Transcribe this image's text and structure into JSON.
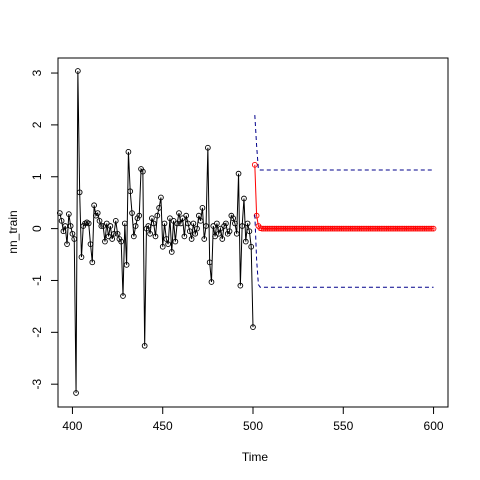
{
  "chart_data": {
    "type": "line",
    "xlabel": "Time",
    "ylabel": "nn_train",
    "xlim": [
      392,
      608
    ],
    "ylim": [
      -3.44,
      3.29
    ],
    "xticks": [
      400,
      450,
      500,
      550,
      600
    ],
    "yticks": [
      -3,
      -2,
      -1,
      0,
      1,
      2,
      3
    ],
    "series": [
      {
        "color": "#000000",
        "style": "line-points",
        "x": [
          393,
          394,
          395,
          396,
          397,
          398,
          399,
          400,
          401,
          402,
          403,
          404,
          405,
          406,
          407,
          408,
          409,
          410,
          411,
          412,
          413,
          414,
          415,
          416,
          417,
          418,
          419,
          420,
          421,
          422,
          423,
          424,
          425,
          426,
          427,
          428,
          429,
          430,
          431,
          432,
          433,
          434,
          435,
          436,
          437,
          438,
          439,
          440,
          441,
          442,
          443,
          444,
          445,
          446,
          447,
          448,
          449,
          450,
          451,
          452,
          453,
          454,
          455,
          456,
          457,
          458,
          459,
          460,
          461,
          462,
          463,
          464,
          465,
          466,
          467,
          468,
          469,
          470,
          471,
          472,
          473,
          474,
          475,
          476,
          477,
          478,
          479,
          480,
          481,
          482,
          483,
          484,
          485,
          486,
          487,
          488,
          489,
          490,
          491,
          492,
          493,
          494,
          495,
          496,
          497,
          498,
          499,
          500
        ],
        "values": [
          0.3,
          0.15,
          -0.05,
          0.05,
          -0.3,
          0.28,
          0.05,
          -0.1,
          -0.2,
          -3.17,
          3.04,
          0.7,
          -0.55,
          0.05,
          0.1,
          0.12,
          0.1,
          -0.3,
          -0.65,
          0.45,
          0.25,
          0.3,
          0.15,
          0.05,
          0.05,
          -0.25,
          0.1,
          -0.15,
          0.05,
          -0.2,
          -0.1,
          0.15,
          -0.1,
          -0.2,
          -0.25,
          -1.3,
          0.1,
          -0.7,
          1.48,
          0.72,
          0.3,
          -0.15,
          0.05,
          0.2,
          0.25,
          1.15,
          1.1,
          -2.26,
          0.0,
          0.05,
          -0.1,
          0.2,
          0.1,
          -0.15,
          0.25,
          0.4,
          0.6,
          -0.35,
          0.1,
          -0.2,
          -0.3,
          0.2,
          -0.45,
          0.15,
          -0.25,
          0.1,
          0.3,
          0.1,
          0.2,
          -0.15,
          0.25,
          0.1,
          -0.05,
          -0.2,
          0.1,
          -0.1,
          0.0,
          0.25,
          0.15,
          0.4,
          -0.2,
          0.05,
          1.56,
          -0.65,
          -1.03,
          0.05,
          -0.15,
          0.1,
          -0.1,
          0.0,
          -0.2,
          0.05,
          0.1,
          -0.1,
          -0.05,
          0.25,
          0.2,
          0.1,
          -0.1,
          1.06,
          -1.1,
          0.05,
          0.58,
          -0.25,
          0.1,
          -0.05,
          -0.35,
          -1.9
        ]
      },
      {
        "color": "#ff0000",
        "style": "line-points",
        "x": [
          501,
          502,
          503,
          504,
          505,
          506,
          507,
          508,
          509,
          510,
          511,
          512,
          513,
          514,
          515,
          516,
          517,
          518,
          519,
          520,
          521,
          522,
          523,
          524,
          525,
          526,
          527,
          528,
          529,
          530,
          531,
          532,
          533,
          534,
          535,
          536,
          537,
          538,
          539,
          540,
          541,
          542,
          543,
          544,
          545,
          546,
          547,
          548,
          549,
          550,
          551,
          552,
          553,
          554,
          555,
          556,
          557,
          558,
          559,
          560,
          561,
          562,
          563,
          564,
          565,
          566,
          567,
          568,
          569,
          570,
          571,
          572,
          573,
          574,
          575,
          576,
          577,
          578,
          579,
          580,
          581,
          582,
          583,
          584,
          585,
          586,
          587,
          588,
          589,
          590,
          591,
          592,
          593,
          594,
          595,
          596,
          597,
          598,
          599,
          600
        ],
        "values": [
          1.23,
          0.25,
          0.05,
          0.01,
          0,
          0,
          0,
          0,
          0,
          0,
          0,
          0,
          0,
          0,
          0,
          0,
          0,
          0,
          0,
          0,
          0,
          0,
          0,
          0,
          0,
          0,
          0,
          0,
          0,
          0,
          0,
          0,
          0,
          0,
          0,
          0,
          0,
          0,
          0,
          0,
          0,
          0,
          0,
          0,
          0,
          0,
          0,
          0,
          0,
          0,
          0,
          0,
          0,
          0,
          0,
          0,
          0,
          0,
          0,
          0,
          0,
          0,
          0,
          0,
          0,
          0,
          0,
          0,
          0,
          0,
          0,
          0,
          0,
          0,
          0,
          0,
          0,
          0,
          0,
          0,
          0,
          0,
          0,
          0,
          0,
          0,
          0,
          0,
          0,
          0,
          0,
          0,
          0,
          0,
          0,
          0,
          0,
          0,
          0,
          0
        ]
      },
      {
        "color": "#00008b",
        "style": "dashed",
        "x": [
          501,
          502,
          503,
          504,
          505,
          506,
          507,
          508,
          509,
          510,
          511,
          512,
          513,
          514,
          515,
          516,
          517,
          518,
          519,
          520,
          521,
          522,
          523,
          524,
          525,
          526,
          527,
          528,
          529,
          530,
          531,
          532,
          533,
          534,
          535,
          536,
          537,
          538,
          539,
          540,
          541,
          542,
          543,
          544,
          545,
          546,
          547,
          548,
          549,
          550,
          551,
          552,
          553,
          554,
          555,
          556,
          557,
          558,
          559,
          560,
          561,
          562,
          563,
          564,
          565,
          566,
          567,
          568,
          569,
          570,
          571,
          572,
          573,
          574,
          575,
          576,
          577,
          578,
          579,
          580,
          581,
          582,
          583,
          584,
          585,
          586,
          587,
          588,
          589,
          590,
          591,
          592,
          593,
          594,
          595,
          596,
          597,
          598,
          599,
          600
        ],
        "values": [
          2.19,
          1.6,
          1.14,
          1.13,
          1.13,
          1.13,
          1.13,
          1.13,
          1.13,
          1.13,
          1.13,
          1.13,
          1.13,
          1.13,
          1.13,
          1.13,
          1.13,
          1.13,
          1.13,
          1.13,
          1.13,
          1.13,
          1.13,
          1.13,
          1.13,
          1.13,
          1.13,
          1.13,
          1.13,
          1.13,
          1.13,
          1.13,
          1.13,
          1.13,
          1.13,
          1.13,
          1.13,
          1.13,
          1.13,
          1.13,
          1.13,
          1.13,
          1.13,
          1.13,
          1.13,
          1.13,
          1.13,
          1.13,
          1.13,
          1.13,
          1.13,
          1.13,
          1.13,
          1.13,
          1.13,
          1.13,
          1.13,
          1.13,
          1.13,
          1.13,
          1.13,
          1.13,
          1.13,
          1.13,
          1.13,
          1.13,
          1.13,
          1.13,
          1.13,
          1.13,
          1.13,
          1.13,
          1.13,
          1.13,
          1.13,
          1.13,
          1.13,
          1.13,
          1.13,
          1.13,
          1.13,
          1.13,
          1.13,
          1.13,
          1.13,
          1.13,
          1.13,
          1.13,
          1.13,
          1.13,
          1.13,
          1.13,
          1.13,
          1.13,
          1.13,
          1.13,
          1.13,
          1.13,
          1.13,
          1.13
        ]
      },
      {
        "color": "#00008b",
        "style": "dashed",
        "x": [
          501,
          502,
          503,
          504,
          505,
          506,
          507,
          508,
          509,
          510,
          511,
          512,
          513,
          514,
          515,
          516,
          517,
          518,
          519,
          520,
          521,
          522,
          523,
          524,
          525,
          526,
          527,
          528,
          529,
          530,
          531,
          532,
          533,
          534,
          535,
          536,
          537,
          538,
          539,
          540,
          541,
          542,
          543,
          544,
          545,
          546,
          547,
          548,
          549,
          550,
          551,
          552,
          553,
          554,
          555,
          556,
          557,
          558,
          559,
          560,
          561,
          562,
          563,
          564,
          565,
          566,
          567,
          568,
          569,
          570,
          571,
          572,
          573,
          574,
          575,
          576,
          577,
          578,
          579,
          580,
          581,
          582,
          583,
          584,
          585,
          586,
          587,
          588,
          589,
          590,
          591,
          592,
          593,
          594,
          595,
          596,
          597,
          598,
          599,
          600
        ],
        "values": [
          0.27,
          -0.6,
          -1.08,
          -1.13,
          -1.13,
          -1.13,
          -1.13,
          -1.13,
          -1.13,
          -1.13,
          -1.13,
          -1.13,
          -1.13,
          -1.13,
          -1.13,
          -1.13,
          -1.13,
          -1.13,
          -1.13,
          -1.13,
          -1.13,
          -1.13,
          -1.13,
          -1.13,
          -1.13,
          -1.13,
          -1.13,
          -1.13,
          -1.13,
          -1.13,
          -1.13,
          -1.13,
          -1.13,
          -1.13,
          -1.13,
          -1.13,
          -1.13,
          -1.13,
          -1.13,
          -1.13,
          -1.13,
          -1.13,
          -1.13,
          -1.13,
          -1.13,
          -1.13,
          -1.13,
          -1.13,
          -1.13,
          -1.13,
          -1.13,
          -1.13,
          -1.13,
          -1.13,
          -1.13,
          -1.13,
          -1.13,
          -1.13,
          -1.13,
          -1.13,
          -1.13,
          -1.13,
          -1.13,
          -1.13,
          -1.13,
          -1.13,
          -1.13,
          -1.13,
          -1.13,
          -1.13,
          -1.13,
          -1.13,
          -1.13,
          -1.13,
          -1.13,
          -1.13,
          -1.13,
          -1.13,
          -1.13,
          -1.13,
          -1.13,
          -1.13,
          -1.13,
          -1.13,
          -1.13,
          -1.13,
          -1.13,
          -1.13,
          -1.13,
          -1.13,
          -1.13,
          -1.13,
          -1.13,
          -1.13,
          -1.13,
          -1.13,
          -1.13,
          -1.13,
          -1.13,
          -1.13
        ]
      }
    ]
  }
}
